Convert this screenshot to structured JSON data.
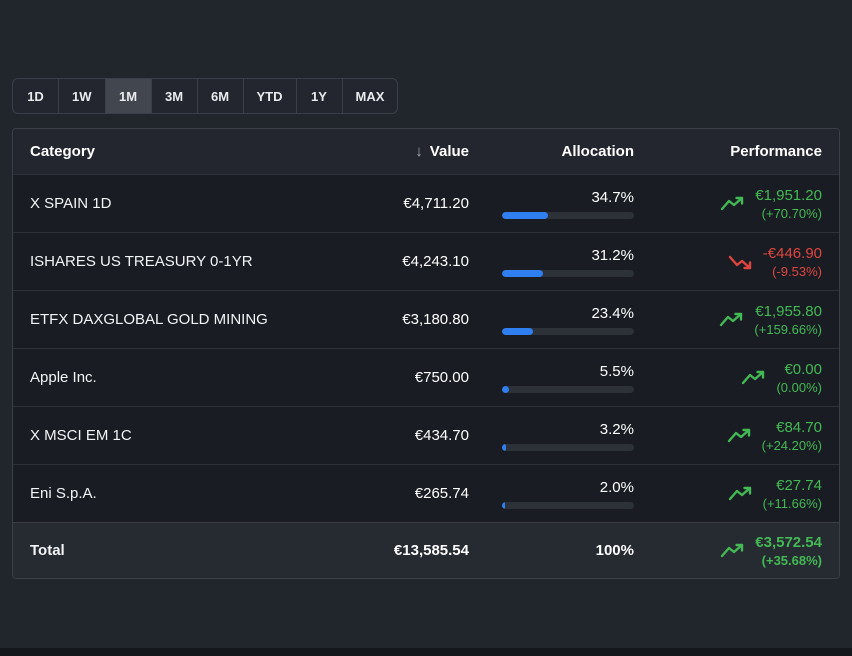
{
  "colors": {
    "page_bg": "#21252c",
    "table_bg": "#191d23",
    "header_bg": "#23262e",
    "selected_bg": "#42464e",
    "total_bg": "#262a31",
    "border": "#3a3f48",
    "row_border": "#2d323a",
    "accent_blue": "#2f7ff0",
    "bar_track": "#2d3138",
    "green": "#43b954",
    "red": "#e0453f"
  },
  "range_selector": {
    "options": [
      {
        "label": "1D",
        "state": "unselected"
      },
      {
        "label": "1W",
        "state": "unselected"
      },
      {
        "label": "1M",
        "state": "selected"
      },
      {
        "label": "3M",
        "state": "unselected"
      },
      {
        "label": "6M",
        "state": "unselected"
      },
      {
        "label": "YTD",
        "state": "unselected"
      },
      {
        "label": "1Y",
        "state": "unselected"
      },
      {
        "label": "MAX",
        "state": "unselected"
      }
    ]
  },
  "table": {
    "headers": {
      "category": "Category",
      "value": "Value",
      "allocation": "Allocation",
      "performance": "Performance"
    },
    "sort_icon": "↓",
    "rows": [
      {
        "category": "X SPAIN 1D",
        "value": "€4,711.20",
        "allocation_label": "34.7%",
        "allocation_pct": 34.7,
        "perf_value": "€1,951.20",
        "perf_pct": "(+70.70%)",
        "direction": "up"
      },
      {
        "category": "ISHARES US TREASURY 0-1YR",
        "value": "€4,243.10",
        "allocation_label": "31.2%",
        "allocation_pct": 31.2,
        "perf_value": "-€446.90",
        "perf_pct": "(-9.53%)",
        "direction": "down"
      },
      {
        "category": "ETFX DAXGLOBAL GOLD MINING",
        "value": "€3,180.80",
        "allocation_label": "23.4%",
        "allocation_pct": 23.4,
        "perf_value": "€1,955.80",
        "perf_pct": "(+159.66%)",
        "direction": "up"
      },
      {
        "category": "Apple Inc.",
        "value": "€750.00",
        "allocation_label": "5.5%",
        "allocation_pct": 5.5,
        "perf_value": "€0.00",
        "perf_pct": "(0.00%)",
        "direction": "up"
      },
      {
        "category": "X MSCI EM 1C",
        "value": "€434.70",
        "allocation_label": "3.2%",
        "allocation_pct": 3.2,
        "perf_value": "€84.70",
        "perf_pct": "(+24.20%)",
        "direction": "up"
      },
      {
        "category": "Eni S.p.A.",
        "value": "€265.74",
        "allocation_label": "2.0%",
        "allocation_pct": 2.0,
        "perf_value": "€27.74",
        "perf_pct": "(+11.66%)",
        "direction": "up"
      }
    ],
    "total": {
      "label": "Total",
      "value": "€13,585.54",
      "allocation_label": "100%",
      "perf_value": "€3,572.54",
      "perf_pct": "(+35.68%)",
      "direction": "up"
    }
  }
}
